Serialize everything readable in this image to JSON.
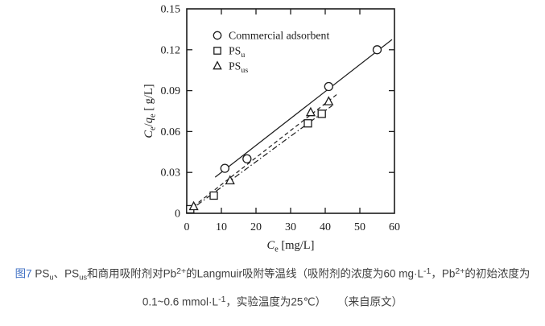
{
  "colors": {
    "background": "#ffffff",
    "chart_ink": "#1c1c1c",
    "caption_text": "#3f3f3f",
    "figure_label_blue": "#4473c5"
  },
  "figure": {
    "caption_line1": [
      {
        "t": "图7 ",
        "label": true
      },
      {
        "t": "PS"
      },
      {
        "t": "u",
        "s": "sub"
      },
      {
        "t": "、PS"
      },
      {
        "t": "us",
        "s": "sub"
      },
      {
        "t": "和商用吸附剂对Pb"
      },
      {
        "t": "2+",
        "s": "sup"
      },
      {
        "t": "的Langmuir吸附等温线（吸附剂的浓度为60 mg·L"
      },
      {
        "t": "-1",
        "s": "sup"
      },
      {
        "t": "，Pb"
      },
      {
        "t": "2+",
        "s": "sup"
      },
      {
        "t": "的初始浓度为"
      }
    ],
    "caption_line2": [
      {
        "t": "0.1~0.6 mmol·L"
      },
      {
        "t": "-1",
        "s": "sup"
      },
      {
        "t": "，实验温度为25℃）"
      },
      {
        "t": " ",
        "gap": true
      },
      {
        "t": "（来自原文）"
      }
    ]
  },
  "chart_data": {
    "type": "scatter",
    "title": "",
    "xlabel_segments": [
      {
        "t": "C",
        "i": true
      },
      {
        "t": "e",
        "s": "sub"
      },
      {
        "t": " [mg/L]"
      }
    ],
    "ylabel_segments": [
      {
        "t": "C",
        "i": true
      },
      {
        "t": "e",
        "s": "sub"
      },
      {
        "t": "/"
      },
      {
        "t": "q",
        "i": true
      },
      {
        "t": "e",
        "s": "sub"
      },
      {
        "t": " [ g/L]"
      }
    ],
    "xlim": [
      0,
      60
    ],
    "ylim": [
      0,
      0.15
    ],
    "xticks": [
      0,
      10,
      20,
      30,
      40,
      50,
      60
    ],
    "xtick_labels": [
      "0",
      "10",
      "20",
      "30",
      "40",
      "50",
      "60"
    ],
    "yticks": [
      0,
      0.03,
      0.06,
      0.09,
      0.12,
      0.15
    ],
    "ytick_labels": [
      "0",
      "0.03",
      "0.06",
      "0.09",
      "0.12",
      "0.15"
    ],
    "grid": false,
    "legend_position": "upper-left-inside",
    "series": [
      {
        "slug": "commercial-adsorbent",
        "label_segments": [
          {
            "t": "Commercial adsorbent"
          }
        ],
        "marker": "circle",
        "line_style": "solid",
        "points": [
          [
            11,
            0.033
          ],
          [
            17.4,
            0.04
          ],
          [
            41,
            0.093
          ],
          [
            55,
            0.12
          ]
        ],
        "fit_line": {
          "x": [
            8.2,
            59.3
          ],
          "y": [
            0.0265,
            0.1275
          ]
        }
      },
      {
        "slug": "ps-u",
        "label_segments": [
          {
            "t": "PS"
          },
          {
            "t": "u",
            "s": "sub"
          }
        ],
        "marker": "square",
        "line_style": "dashdot",
        "points": [
          [
            1,
            0.003
          ],
          [
            7.8,
            0.013
          ],
          [
            35,
            0.066
          ],
          [
            39,
            0.073
          ]
        ],
        "fit_line": {
          "x": [
            0.3,
            42.0
          ],
          "y": [
            0.001,
            0.079
          ]
        }
      },
      {
        "slug": "ps-us",
        "label_segments": [
          {
            "t": "PS"
          },
          {
            "t": "us",
            "s": "sub"
          }
        ],
        "marker": "triangle",
        "line_style": "dashed",
        "points": [
          [
            2,
            0.005
          ],
          [
            12.5,
            0.024
          ],
          [
            35.8,
            0.074
          ],
          [
            41,
            0.082
          ]
        ],
        "fit_line": {
          "x": [
            0.3,
            43.5
          ],
          "y": [
            0.0018,
            0.0875
          ]
        }
      }
    ]
  }
}
